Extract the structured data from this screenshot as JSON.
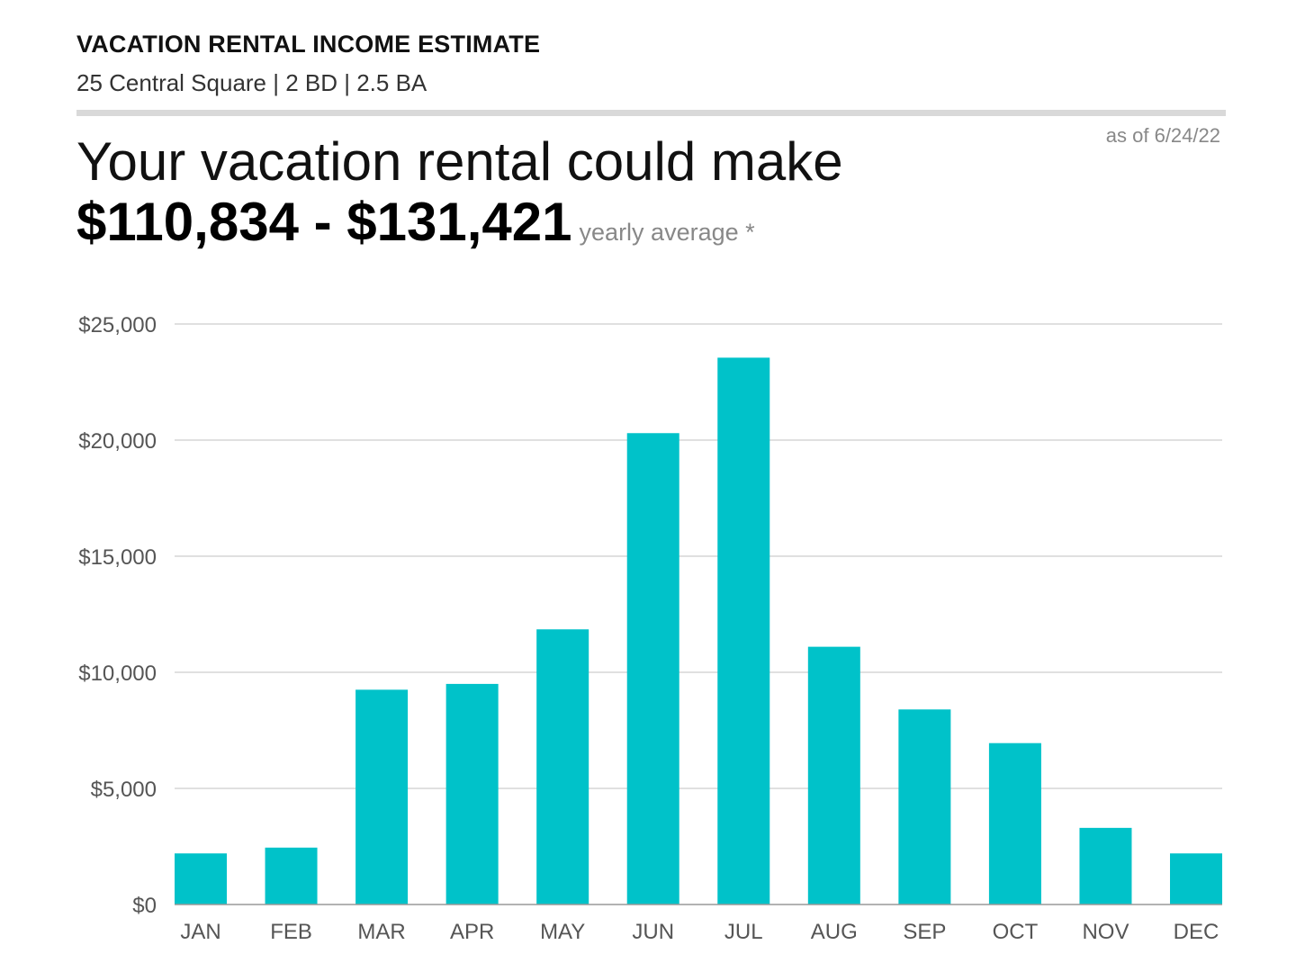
{
  "header": {
    "title": "VACATION RENTAL INCOME ESTIMATE",
    "property": "25 Central Square | 2 BD | 2.5 BA",
    "as_of": "as of 6/24/22"
  },
  "summary": {
    "headline": "Your vacation rental could make",
    "range": "$110,834 - $131,421",
    "range_note": "yearly average *"
  },
  "colors": {
    "bar": "#00c2c9",
    "grid": "#d6d6d6",
    "divider": "#d9d9d9"
  },
  "chart_data": {
    "type": "bar",
    "categories": [
      "JAN",
      "FEB",
      "MAR",
      "APR",
      "MAY",
      "JUN",
      "JUL",
      "AUG",
      "SEP",
      "OCT",
      "NOV",
      "DEC"
    ],
    "values": [
      2200,
      2450,
      9250,
      9500,
      11850,
      20300,
      23550,
      11100,
      8400,
      6950,
      3300,
      2200
    ],
    "ylim": [
      0,
      25000
    ],
    "yticks": [
      0,
      5000,
      10000,
      15000,
      20000,
      25000
    ],
    "ytick_labels": [
      "$0",
      "$5,000",
      "$10,000",
      "$15,000",
      "$20,000",
      "$25,000"
    ],
    "grid": true,
    "title": "",
    "xlabel": "",
    "ylabel": ""
  }
}
